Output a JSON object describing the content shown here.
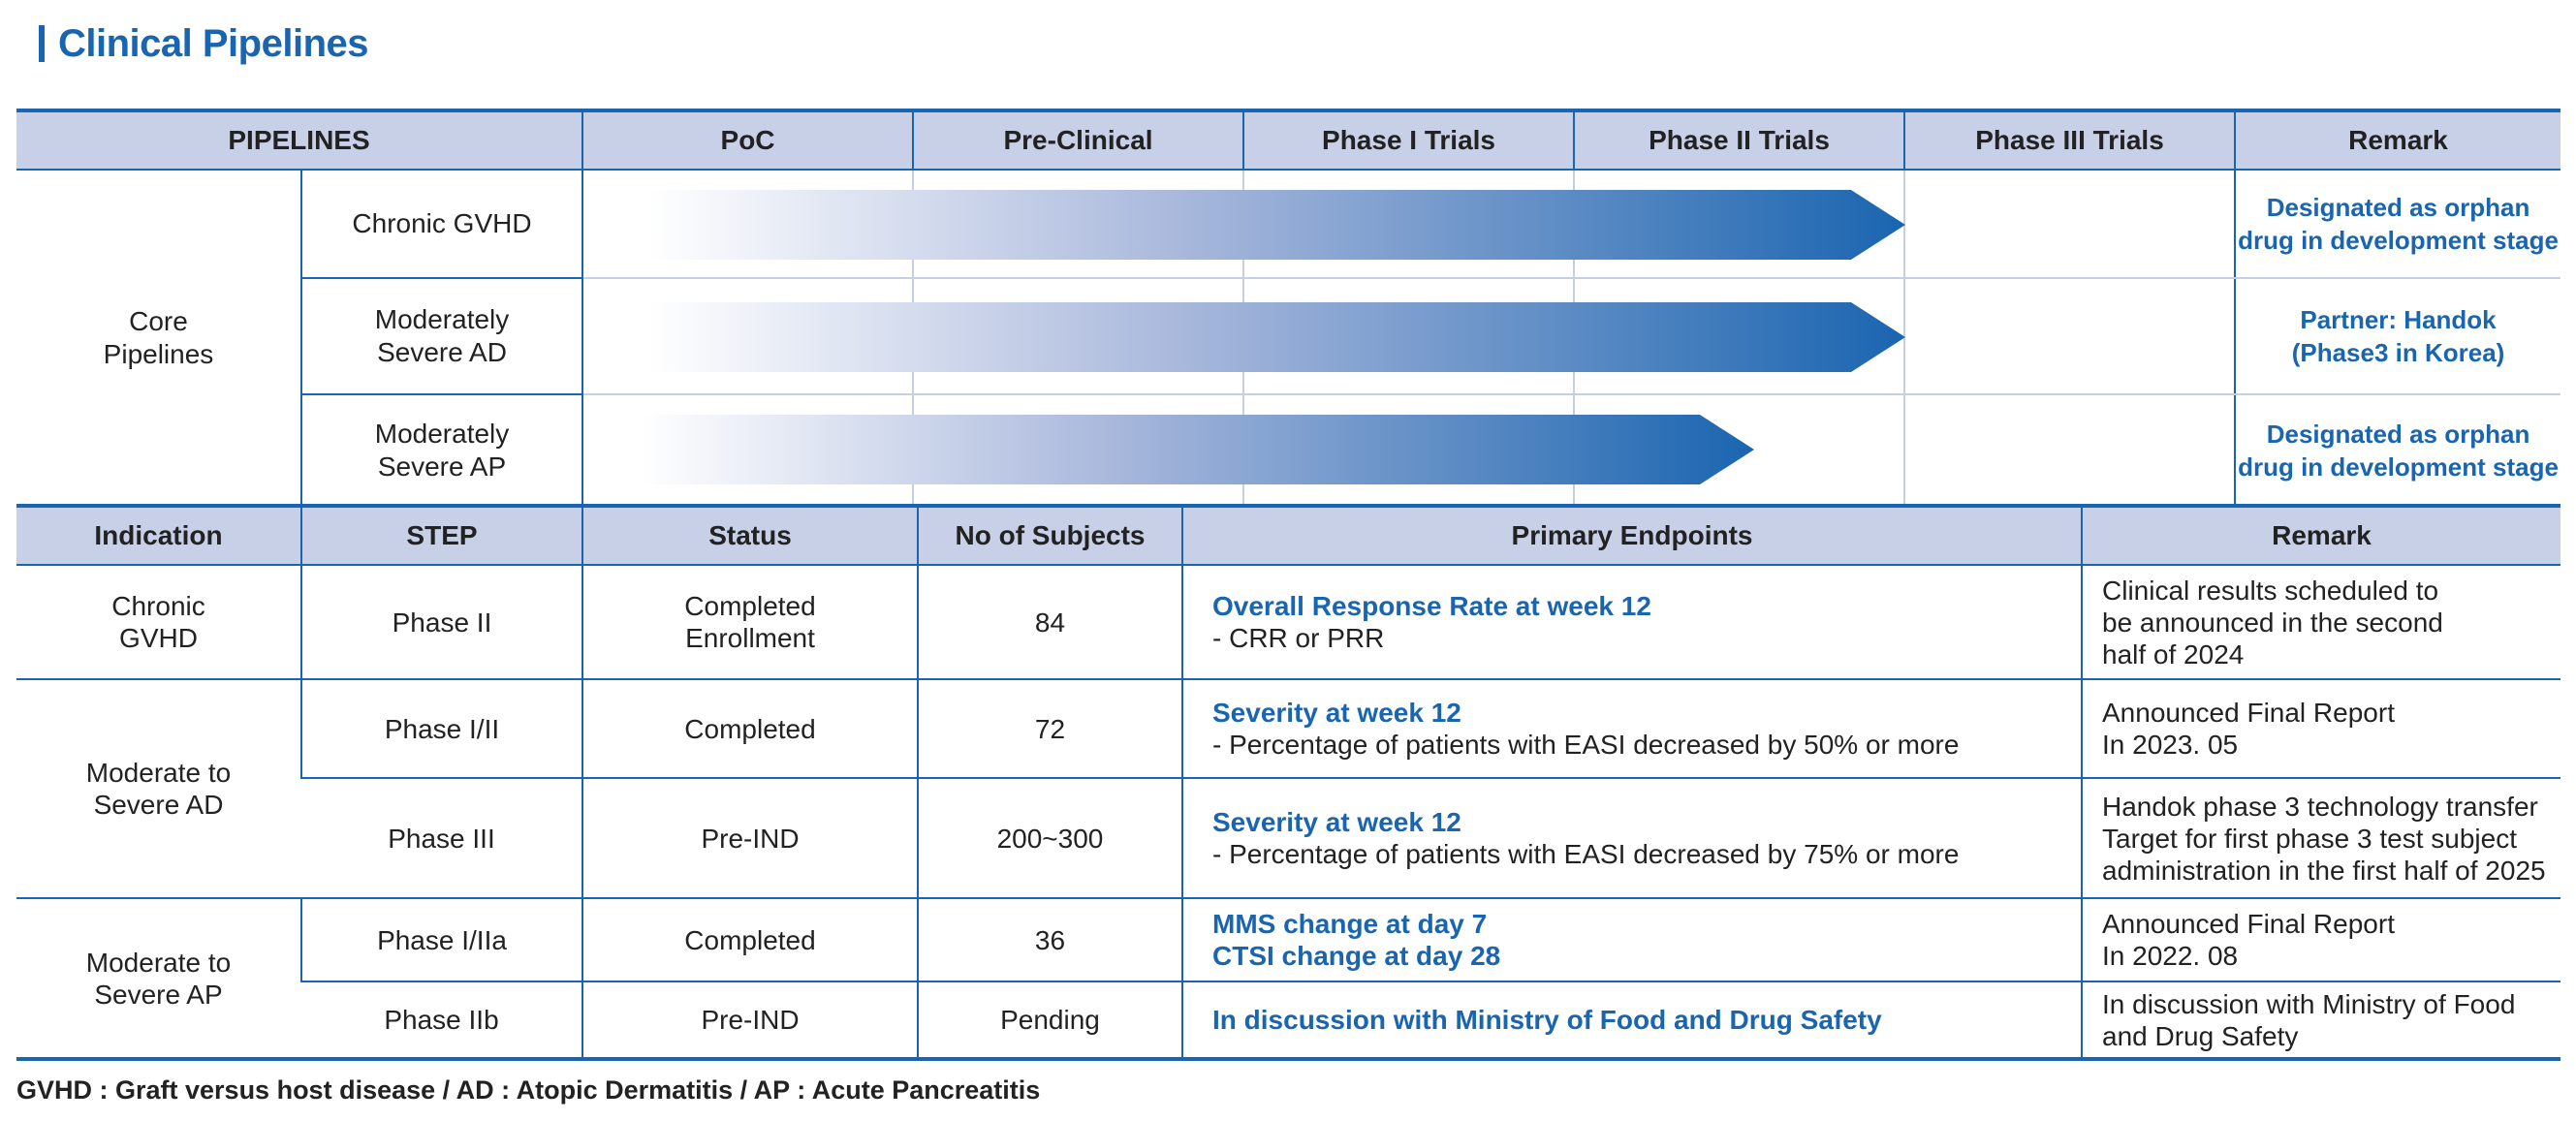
{
  "title": "Clinical Pipelines",
  "pipelines": {
    "headers": [
      "PIPELINES",
      "PoC",
      "Pre-Clinical",
      "Phase I Trials",
      "Phase II Trials",
      "Phase III Trials",
      "Remark"
    ],
    "group_label": "Core\nPipelines",
    "rows": [
      {
        "indication": "Chronic GVHD",
        "progress_stage": "Phase II Trials",
        "remark": "Designated as orphan\ndrug in development stage"
      },
      {
        "indication": "Moderately\nSevere AD",
        "progress_stage": "Phase II Trials",
        "remark": "Partner: Handok\n(Phase3 in Korea)"
      },
      {
        "indication": "Moderately\nSevere AP",
        "progress_stage": "Phase II Trials",
        "remark": "Designated as orphan\ndrug in development stage"
      }
    ],
    "colors": {
      "arrow_start": "#ffffff",
      "arrow_end": "#1a65b0",
      "accent": "#1a65b0",
      "header_bg": "#c8d0e8"
    }
  },
  "studies": {
    "headers": [
      "Indication",
      "STEP",
      "Status",
      "No of Subjects",
      "Primary Endpoints",
      "Remark"
    ],
    "groups": [
      {
        "indication": "Chronic\nGVHD",
        "rows": [
          {
            "step": "Phase II",
            "status": "Completed\nEnrollment",
            "subjects": "84",
            "endpoint_titles": [
              "Overall Response Rate at week 12"
            ],
            "endpoint_details": [
              "- CRR or PRR"
            ],
            "remark": [
              "Clinical results scheduled to",
              "be announced in the second",
              "half of 2024"
            ]
          }
        ]
      },
      {
        "indication": "Moderate to\nSevere AD",
        "rows": [
          {
            "step": "Phase I/II",
            "status": "Completed",
            "subjects": "72",
            "endpoint_titles": [
              "Severity at week 12"
            ],
            "endpoint_details": [
              "- Percentage of patients with EASI decreased by 50% or more"
            ],
            "remark": [
              "Announced Final Report",
              "In 2023. 05"
            ]
          },
          {
            "step": "Phase III",
            "status": "Pre-IND",
            "subjects": "200~300",
            "endpoint_titles": [
              "Severity at week 12"
            ],
            "endpoint_details": [
              "- Percentage of patients with EASI decreased by 75% or more"
            ],
            "remark": [
              "Handok phase 3 technology transfer",
              "Target for first phase 3 test subject",
              "administration in the first half of 2025"
            ]
          }
        ]
      },
      {
        "indication": "Moderate to\nSevere AP",
        "rows": [
          {
            "step": "Phase I/IIa",
            "status": "Completed",
            "subjects": "36",
            "endpoint_titles": [
              "MMS change at day 7",
              "CTSI change at day 28"
            ],
            "endpoint_details": [],
            "remark": [
              "Announced Final Report",
              "In 2022. 08"
            ]
          },
          {
            "step": "Phase IIb",
            "status": "Pre-IND",
            "subjects": "Pending",
            "endpoint_titles": [
              "In discussion with Ministry of Food and Drug Safety"
            ],
            "endpoint_details": [],
            "remark": [
              "In discussion with Ministry of Food",
              "and Drug Safety"
            ]
          }
        ]
      }
    ]
  },
  "footnote": "GVHD : Graft versus host disease / AD : Atopic Dermatitis / AP : Acute Pancreatitis"
}
